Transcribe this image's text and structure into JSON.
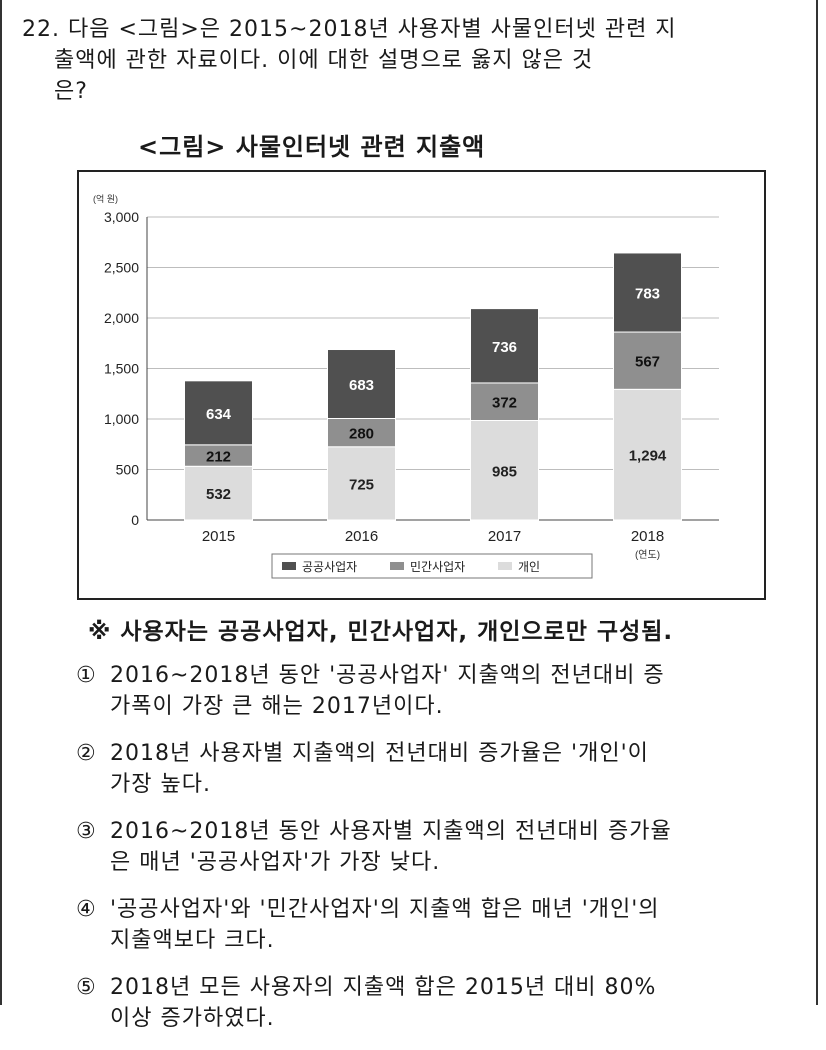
{
  "question": {
    "lines": [
      "22. 다음 <그림>은 2015~2018년 사용자별 사물인터넷 관련 지",
      "    출액에 관한 자료이다. 이에 대한 설명으로 옳지 않은 것",
      "    은?"
    ]
  },
  "figure_title": "<그림> 사물인터넷 관련 지출액",
  "note": "※ 사용자는 공공사업자, 민간사업자, 개인으로만 구성됨.",
  "choices": [
    {
      "num": "①",
      "lines": [
        "2016~2018년 동안 '공공사업자' 지출액의 전년대비 증",
        "가폭이 가장 큰 해는 2017년이다."
      ]
    },
    {
      "num": "②",
      "lines": [
        "2018년 사용자별 지출액의 전년대비 증가율은 '개인'이",
        "가장 높다."
      ]
    },
    {
      "num": "③",
      "lines": [
        "2016~2018년 동안 사용자별 지출액의 전년대비 증가율",
        "은 매년 '공공사업자'가 가장 낮다."
      ]
    },
    {
      "num": "④",
      "lines": [
        "'공공사업자'와 '민간사업자'의 지출액 합은 매년 '개인'의",
        "지출액보다 크다."
      ]
    },
    {
      "num": "⑤",
      "lines": [
        "2018년 모든 사용자의 지출액 합은 2015년 대비 80%",
        "이상 증가하였다."
      ]
    }
  ],
  "chart_data": {
    "type": "bar",
    "stacked": true,
    "unit_label": "(억 원)",
    "x_unit_label": "(연도)",
    "categories": [
      "2015",
      "2016",
      "2017",
      "2018"
    ],
    "ylim": [
      0,
      3000
    ],
    "y_ticks": [
      "0",
      "500",
      "1,000",
      "1,500",
      "2,000",
      "2,500",
      "3,000"
    ],
    "y_tick_values": [
      0,
      500,
      1000,
      1500,
      2000,
      2500,
      3000
    ],
    "grid": true,
    "legend_position": "bottom",
    "series": [
      {
        "name": "개인",
        "values": [
          532,
          725,
          985,
          1294
        ],
        "labels": [
          "532",
          "725",
          "985",
          "1,294"
        ],
        "color": "#dcdcdc",
        "label_color": "#222222"
      },
      {
        "name": "민간사업자",
        "values": [
          212,
          280,
          372,
          567
        ],
        "labels": [
          "212",
          "280",
          "372",
          "567"
        ],
        "color": "#8f8f8f",
        "label_color": "#111111"
      },
      {
        "name": "공공사업자",
        "values": [
          634,
          683,
          736,
          783
        ],
        "labels": [
          "634",
          "683",
          "736",
          "783"
        ],
        "color": "#505050",
        "label_color": "#ffffff"
      }
    ],
    "legend_order": [
      "공공사업자",
      "민간사업자",
      "개인"
    ]
  }
}
